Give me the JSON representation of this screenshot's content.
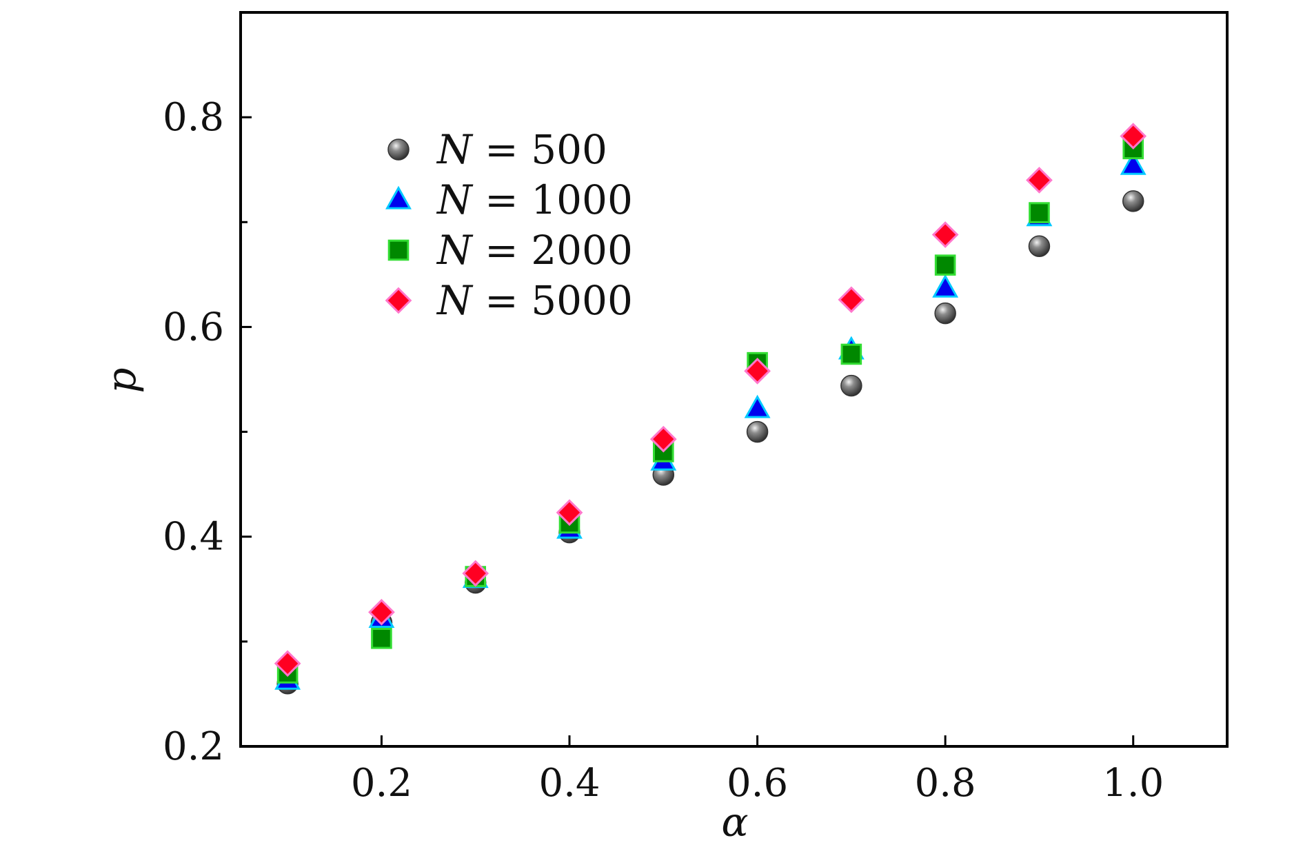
{
  "chart_data": {
    "type": "scatter",
    "title": "",
    "xlabel": "α",
    "ylabel": "p",
    "xlim": [
      0.05,
      1.1
    ],
    "ylim": [
      0.2,
      0.9
    ],
    "x_ticks": [
      0.2,
      0.4,
      0.6,
      0.8,
      1.0
    ],
    "x_tick_labels": [
      "0.2",
      "0.4",
      "0.6",
      "0.8",
      "1.0"
    ],
    "y_ticks": [
      0.2,
      0.4,
      0.6,
      0.8
    ],
    "y_tick_labels": [
      "0.2",
      "0.4",
      "0.6",
      "0.8"
    ],
    "y_minor_ticks": [
      0.3,
      0.5,
      0.7
    ],
    "grid": false,
    "legend_position": "upper-left",
    "x": [
      0.1,
      0.2,
      0.3,
      0.4,
      0.5,
      0.6,
      0.7,
      0.8,
      0.9,
      1.0
    ],
    "series": [
      {
        "name_var": "N",
        "name_eq": " = ",
        "name_val": "500",
        "marker": "sphere",
        "color": "#5a5a5a",
        "edge": "#333333",
        "values": [
          0.26,
          0.318,
          0.356,
          0.404,
          0.459,
          0.5,
          0.544,
          0.613,
          0.677,
          0.72
        ]
      },
      {
        "name_var": "N",
        "name_eq": " = ",
        "name_val": "1000",
        "marker": "triangle",
        "color": "#0000ee",
        "edge": "#00c8ff",
        "values": [
          0.263,
          0.322,
          0.36,
          0.407,
          0.472,
          0.522,
          0.578,
          0.637,
          0.705,
          0.754
        ]
      },
      {
        "name_var": "N",
        "name_eq": " = ",
        "name_val": "2000",
        "marker": "square",
        "color": "#008800",
        "edge": "#33dd33",
        "values": [
          0.27,
          0.303,
          0.362,
          0.413,
          0.481,
          0.566,
          0.574,
          0.659,
          0.709,
          0.77
        ]
      },
      {
        "name_var": "N",
        "name_eq": " = ",
        "name_val": "5000",
        "marker": "diamond",
        "color": "#ff0022",
        "edge": "#ff77cc",
        "values": [
          0.279,
          0.328,
          0.365,
          0.423,
          0.493,
          0.558,
          0.626,
          0.688,
          0.74,
          0.782
        ]
      }
    ]
  }
}
